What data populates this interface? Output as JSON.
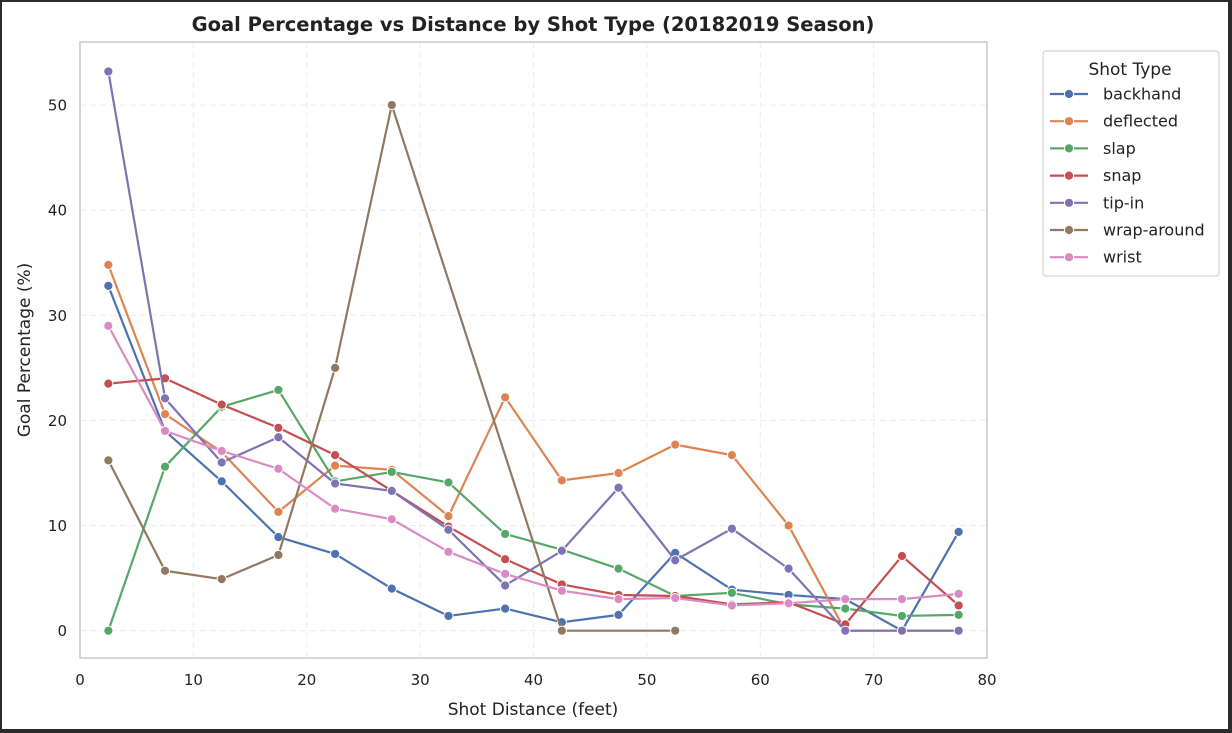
{
  "chart_data": {
    "type": "line",
    "title": "Goal Percentage vs Distance by Shot Type (20182019 Season)",
    "xlabel": "Shot Distance (feet)",
    "ylabel": "Goal Percentage (%)",
    "xlim": [
      0,
      80
    ],
    "ylim": [
      -2.6,
      56
    ],
    "xticks": [
      0,
      10,
      20,
      30,
      40,
      50,
      60,
      70,
      80
    ],
    "yticks": [
      0,
      10,
      20,
      30,
      40,
      50
    ],
    "grid": true,
    "legend": {
      "title": "Shot Type",
      "placement": "outside-right"
    },
    "x": [
      2.5,
      7.5,
      12.5,
      17.5,
      22.5,
      27.5,
      32.5,
      37.5,
      42.5,
      47.5,
      52.5,
      57.5,
      62.5,
      67.5,
      72.5,
      77.5
    ],
    "series": [
      {
        "name": "backhand",
        "color": "#4c72b0",
        "values": [
          32.8,
          19.0,
          14.2,
          8.9,
          7.3,
          4.0,
          1.4,
          2.1,
          0.8,
          1.5,
          7.4,
          3.9,
          3.4,
          3.0,
          0.0,
          9.4
        ]
      },
      {
        "name": "deflected",
        "color": "#dd8452",
        "values": [
          34.8,
          20.6,
          17.0,
          11.3,
          15.7,
          15.3,
          10.9,
          22.2,
          14.3,
          15.0,
          17.7,
          16.7,
          10.0,
          0.0,
          0.0,
          0.0
        ]
      },
      {
        "name": "slap",
        "color": "#55a868",
        "values": [
          0.0,
          15.6,
          21.3,
          22.9,
          14.2,
          15.1,
          14.1,
          9.2,
          7.7,
          5.9,
          3.3,
          3.6,
          2.5,
          2.1,
          1.4,
          1.5
        ]
      },
      {
        "name": "snap",
        "color": "#c44e52",
        "values": [
          23.5,
          24.0,
          21.5,
          19.3,
          16.7,
          13.3,
          9.9,
          6.8,
          4.4,
          3.4,
          3.3,
          2.5,
          2.7,
          0.6,
          7.1,
          2.4
        ]
      },
      {
        "name": "tip-in",
        "color": "#8172b3",
        "values": [
          53.2,
          22.1,
          16.0,
          18.4,
          14.0,
          13.3,
          9.6,
          4.3,
          7.6,
          13.6,
          6.7,
          9.7,
          5.9,
          0.0,
          0.0,
          0.0
        ]
      },
      {
        "name": "wrap-around",
        "color": "#937860",
        "values": [
          16.2,
          5.7,
          4.9,
          7.2,
          25.0,
          50.0,
          null,
          null,
          0.0,
          null,
          0.0,
          null,
          null,
          null,
          null,
          null
        ]
      },
      {
        "name": "wrist",
        "color": "#da8bc3",
        "values": [
          29.0,
          19.0,
          17.1,
          15.4,
          11.6,
          10.6,
          7.5,
          5.4,
          3.8,
          3.0,
          3.1,
          2.4,
          2.6,
          3.0,
          3.0,
          3.5
        ]
      }
    ]
  }
}
